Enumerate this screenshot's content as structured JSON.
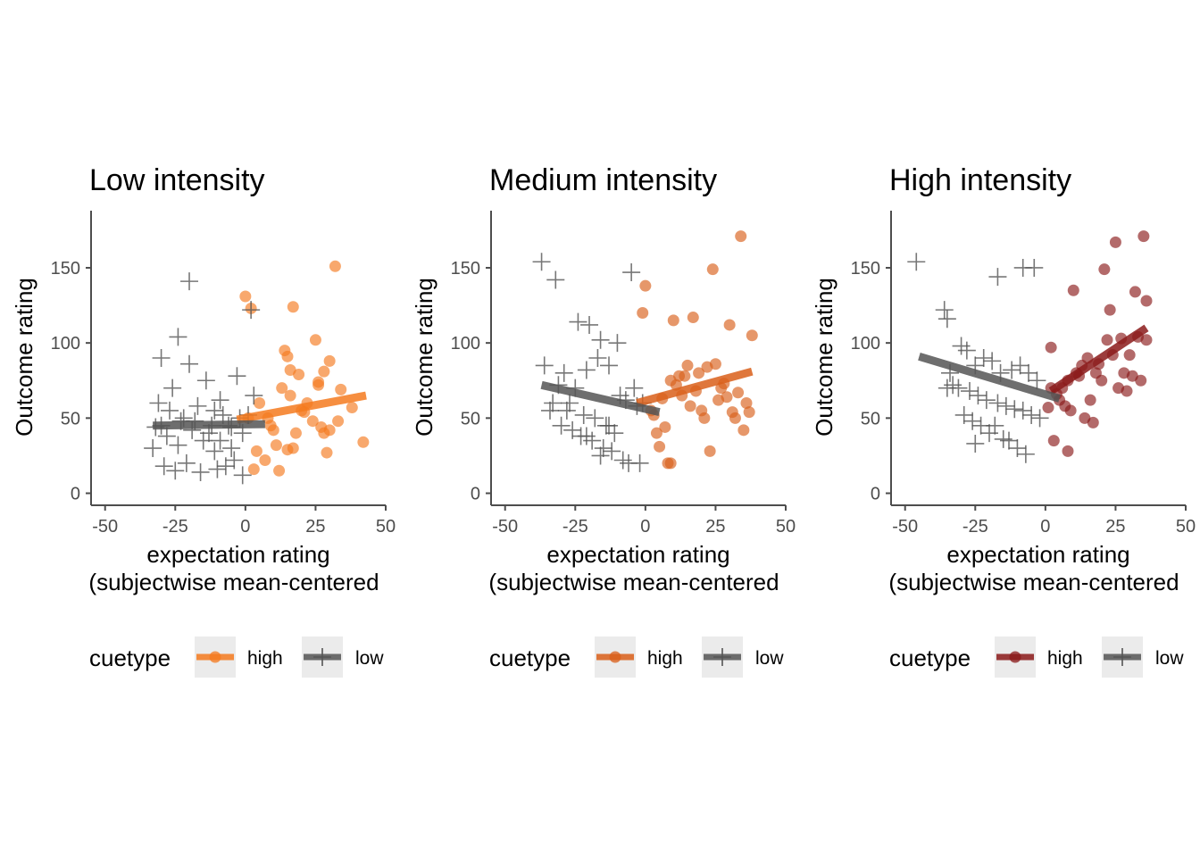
{
  "legend": {
    "title": "cuetype",
    "high_label": "high",
    "low_label": "low"
  },
  "chart_data": [
    {
      "type": "scatter",
      "title": "Low intensity",
      "xlabel_line1": "expectation rating",
      "xlabel_line2": "(subjectwise mean-centered",
      "ylabel": "Outcome rating",
      "xlim": [
        -55,
        50
      ],
      "ylim": [
        -8,
        188
      ],
      "xticks": [
        -50,
        -25,
        0,
        25,
        50
      ],
      "xtick_labels": [
        "-50",
        "-25",
        "0",
        "25",
        "50"
      ],
      "yticks": [
        0,
        50,
        100,
        150
      ],
      "ytick_labels": [
        "0",
        "50",
        "100",
        "150"
      ],
      "legend_position": "bottom",
      "colors": {
        "high": "#f47a1f",
        "low": "#555555"
      },
      "series": [
        {
          "name": "high",
          "marker": "circle",
          "x": [
            0,
            2,
            17,
            32,
            14,
            15,
            16,
            19,
            25,
            28,
            30,
            1,
            5,
            9,
            13,
            18,
            22,
            26,
            34,
            38,
            42,
            3,
            7,
            11,
            20,
            24,
            27,
            29,
            33,
            15,
            17,
            12,
            10,
            26,
            30,
            28,
            16,
            8,
            21,
            4
          ],
          "y": [
            131,
            123,
            124,
            151,
            95,
            91,
            82,
            79,
            102,
            81,
            88,
            50,
            60,
            45,
            70,
            40,
            60,
            74,
            69,
            57,
            34,
            16,
            22,
            32,
            55,
            48,
            44,
            27,
            48,
            29,
            30,
            15,
            42,
            72,
            42,
            40,
            65,
            50,
            54,
            28
          ]
        },
        {
          "name": "low",
          "marker": "cross",
          "x": [
            -20,
            -24,
            -30,
            -20,
            -14,
            -8,
            -3,
            2,
            -31,
            -27,
            -22,
            -18,
            -12,
            -9,
            -5,
            -1,
            3,
            -33,
            -28,
            -24,
            -19,
            -15,
            -11,
            -6,
            -2,
            1,
            -29,
            -25,
            -21,
            -16,
            -10,
            -7,
            -4,
            -1,
            -30,
            -26,
            -17,
            -13,
            -9,
            -5,
            -32,
            -23,
            -11
          ],
          "y": [
            141,
            104,
            90,
            86,
            75,
            52,
            78,
            122,
            60,
            55,
            50,
            48,
            45,
            62,
            44,
            40,
            65,
            30,
            38,
            32,
            42,
            35,
            28,
            45,
            50,
            52,
            18,
            15,
            20,
            14,
            16,
            18,
            22,
            12,
            45,
            70,
            58,
            40,
            35,
            30,
            44,
            48,
            55
          ]
        }
      ],
      "fit_lines": [
        {
          "name": "high",
          "x": [
            -3,
            43
          ],
          "y": [
            49,
            65
          ]
        },
        {
          "name": "low",
          "x": [
            -33,
            7
          ],
          "y": [
            45,
            46
          ]
        }
      ]
    },
    {
      "type": "scatter",
      "title": "Medium intensity",
      "xlabel_line1": "expectation rating",
      "xlabel_line2": "(subjectwise mean-centered",
      "ylabel": "Outcome rating",
      "xlim": [
        -55,
        50
      ],
      "ylim": [
        -8,
        188
      ],
      "xticks": [
        -50,
        -25,
        0,
        25,
        50
      ],
      "xtick_labels": [
        "-50",
        "-25",
        "0",
        "25",
        "50"
      ],
      "yticks": [
        0,
        50,
        100,
        150
      ],
      "ytick_labels": [
        "0",
        "50",
        "100",
        "150"
      ],
      "legend_position": "bottom",
      "colors": {
        "high": "#d95f1a",
        "low": "#555555"
      },
      "series": [
        {
          "name": "high",
          "marker": "circle",
          "x": [
            34,
            24,
            30,
            38,
            0,
            -1,
            10,
            17,
            6,
            12,
            15,
            19,
            22,
            25,
            27,
            29,
            33,
            36,
            3,
            5,
            8,
            9,
            13,
            16,
            20,
            23,
            26,
            28,
            31,
            35,
            37,
            11,
            14,
            18,
            7,
            21,
            4,
            2,
            32,
            9
          ],
          "y": [
            171,
            149,
            112,
            105,
            138,
            120,
            115,
            117,
            63,
            78,
            85,
            80,
            84,
            86,
            70,
            64,
            67,
            60,
            52,
            31,
            20,
            20,
            65,
            58,
            55,
            28,
            62,
            73,
            54,
            42,
            54,
            72,
            78,
            68,
            44,
            50,
            40,
            55,
            50,
            75
          ]
        },
        {
          "name": "low",
          "marker": "cross",
          "x": [
            -37,
            -32,
            -24,
            -20,
            -16,
            -10,
            -5,
            -36,
            -29,
            -25,
            -21,
            -17,
            -13,
            -9,
            -4,
            -1,
            -33,
            -28,
            -22,
            -18,
            -14,
            -11,
            -7,
            -3,
            -30,
            -26,
            -23,
            -19,
            -15,
            -12,
            -8,
            -31,
            -27,
            -16,
            -6,
            -2,
            -34,
            -21,
            -13
          ],
          "y": [
            154,
            142,
            114,
            112,
            102,
            100,
            147,
            85,
            80,
            70,
            82,
            90,
            85,
            65,
            70,
            60,
            60,
            55,
            52,
            50,
            45,
            40,
            62,
            58,
            45,
            42,
            38,
            35,
            30,
            28,
            22,
            72,
            60,
            25,
            20,
            20,
            55,
            38,
            45
          ]
        }
      ],
      "fit_lines": [
        {
          "name": "high",
          "x": [
            -3,
            38
          ],
          "y": [
            60,
            81
          ]
        },
        {
          "name": "low",
          "x": [
            -37,
            5
          ],
          "y": [
            72,
            54
          ]
        }
      ]
    },
    {
      "type": "scatter",
      "title": "High intensity",
      "xlabel_line1": "expectation rating",
      "xlabel_line2": "(subjectwise mean-centered",
      "ylabel": "Outcome rating",
      "xlim": [
        -55,
        50
      ],
      "ylim": [
        -8,
        188
      ],
      "xticks": [
        -50,
        -25,
        0,
        25,
        50
      ],
      "xtick_labels": [
        "-50",
        "-25",
        "0",
        "25",
        "50"
      ],
      "yticks": [
        0,
        50,
        100,
        150
      ],
      "ytick_labels": [
        "0",
        "50",
        "100",
        "150"
      ],
      "legend_position": "bottom",
      "colors": {
        "high": "#8b1a1a",
        "low": "#555555"
      },
      "series": [
        {
          "name": "high",
          "marker": "circle",
          "x": [
            21,
            25,
            35,
            32,
            36,
            23,
            10,
            2,
            13,
            18,
            22,
            27,
            30,
            34,
            6,
            8,
            11,
            15,
            19,
            24,
            28,
            33,
            1,
            4,
            7,
            12,
            16,
            20,
            26,
            29,
            31,
            36,
            9,
            14,
            17,
            5,
            3,
            2,
            8
          ],
          "y": [
            149,
            167,
            171,
            134,
            128,
            122,
            135,
            97,
            85,
            80,
            102,
            103,
            92,
            75,
            70,
            75,
            80,
            90,
            86,
            92,
            80,
            104,
            57,
            66,
            58,
            78,
            62,
            75,
            70,
            68,
            78,
            102,
            55,
            50,
            47,
            62,
            35,
            70,
            28
          ]
        },
        {
          "name": "low",
          "marker": "cross",
          "x": [
            -46,
            -36,
            -35,
            -30,
            -28,
            -25,
            -22,
            -19,
            -16,
            -12,
            -9,
            -6,
            -3,
            -33,
            -31,
            -27,
            -24,
            -21,
            -17,
            -14,
            -11,
            -8,
            -5,
            -2,
            -35,
            -29,
            -26,
            -23,
            -20,
            -15,
            -10,
            -7,
            -4,
            -34,
            -18,
            -13,
            -25,
            -17,
            -8
          ],
          "y": [
            154,
            122,
            116,
            98,
            95,
            85,
            90,
            88,
            80,
            82,
            85,
            80,
            75,
            72,
            70,
            68,
            65,
            62,
            60,
            58,
            56,
            55,
            52,
            50,
            70,
            52,
            48,
            45,
            40,
            36,
            30,
            26,
            150,
            80,
            45,
            35,
            33,
            144,
            150
          ]
        }
      ],
      "fit_lines": [
        {
          "name": "high",
          "x": [
            2,
            36
          ],
          "y": [
            68,
            110
          ]
        },
        {
          "name": "low",
          "x": [
            -45,
            5
          ],
          "y": [
            91,
            63
          ]
        }
      ]
    }
  ]
}
